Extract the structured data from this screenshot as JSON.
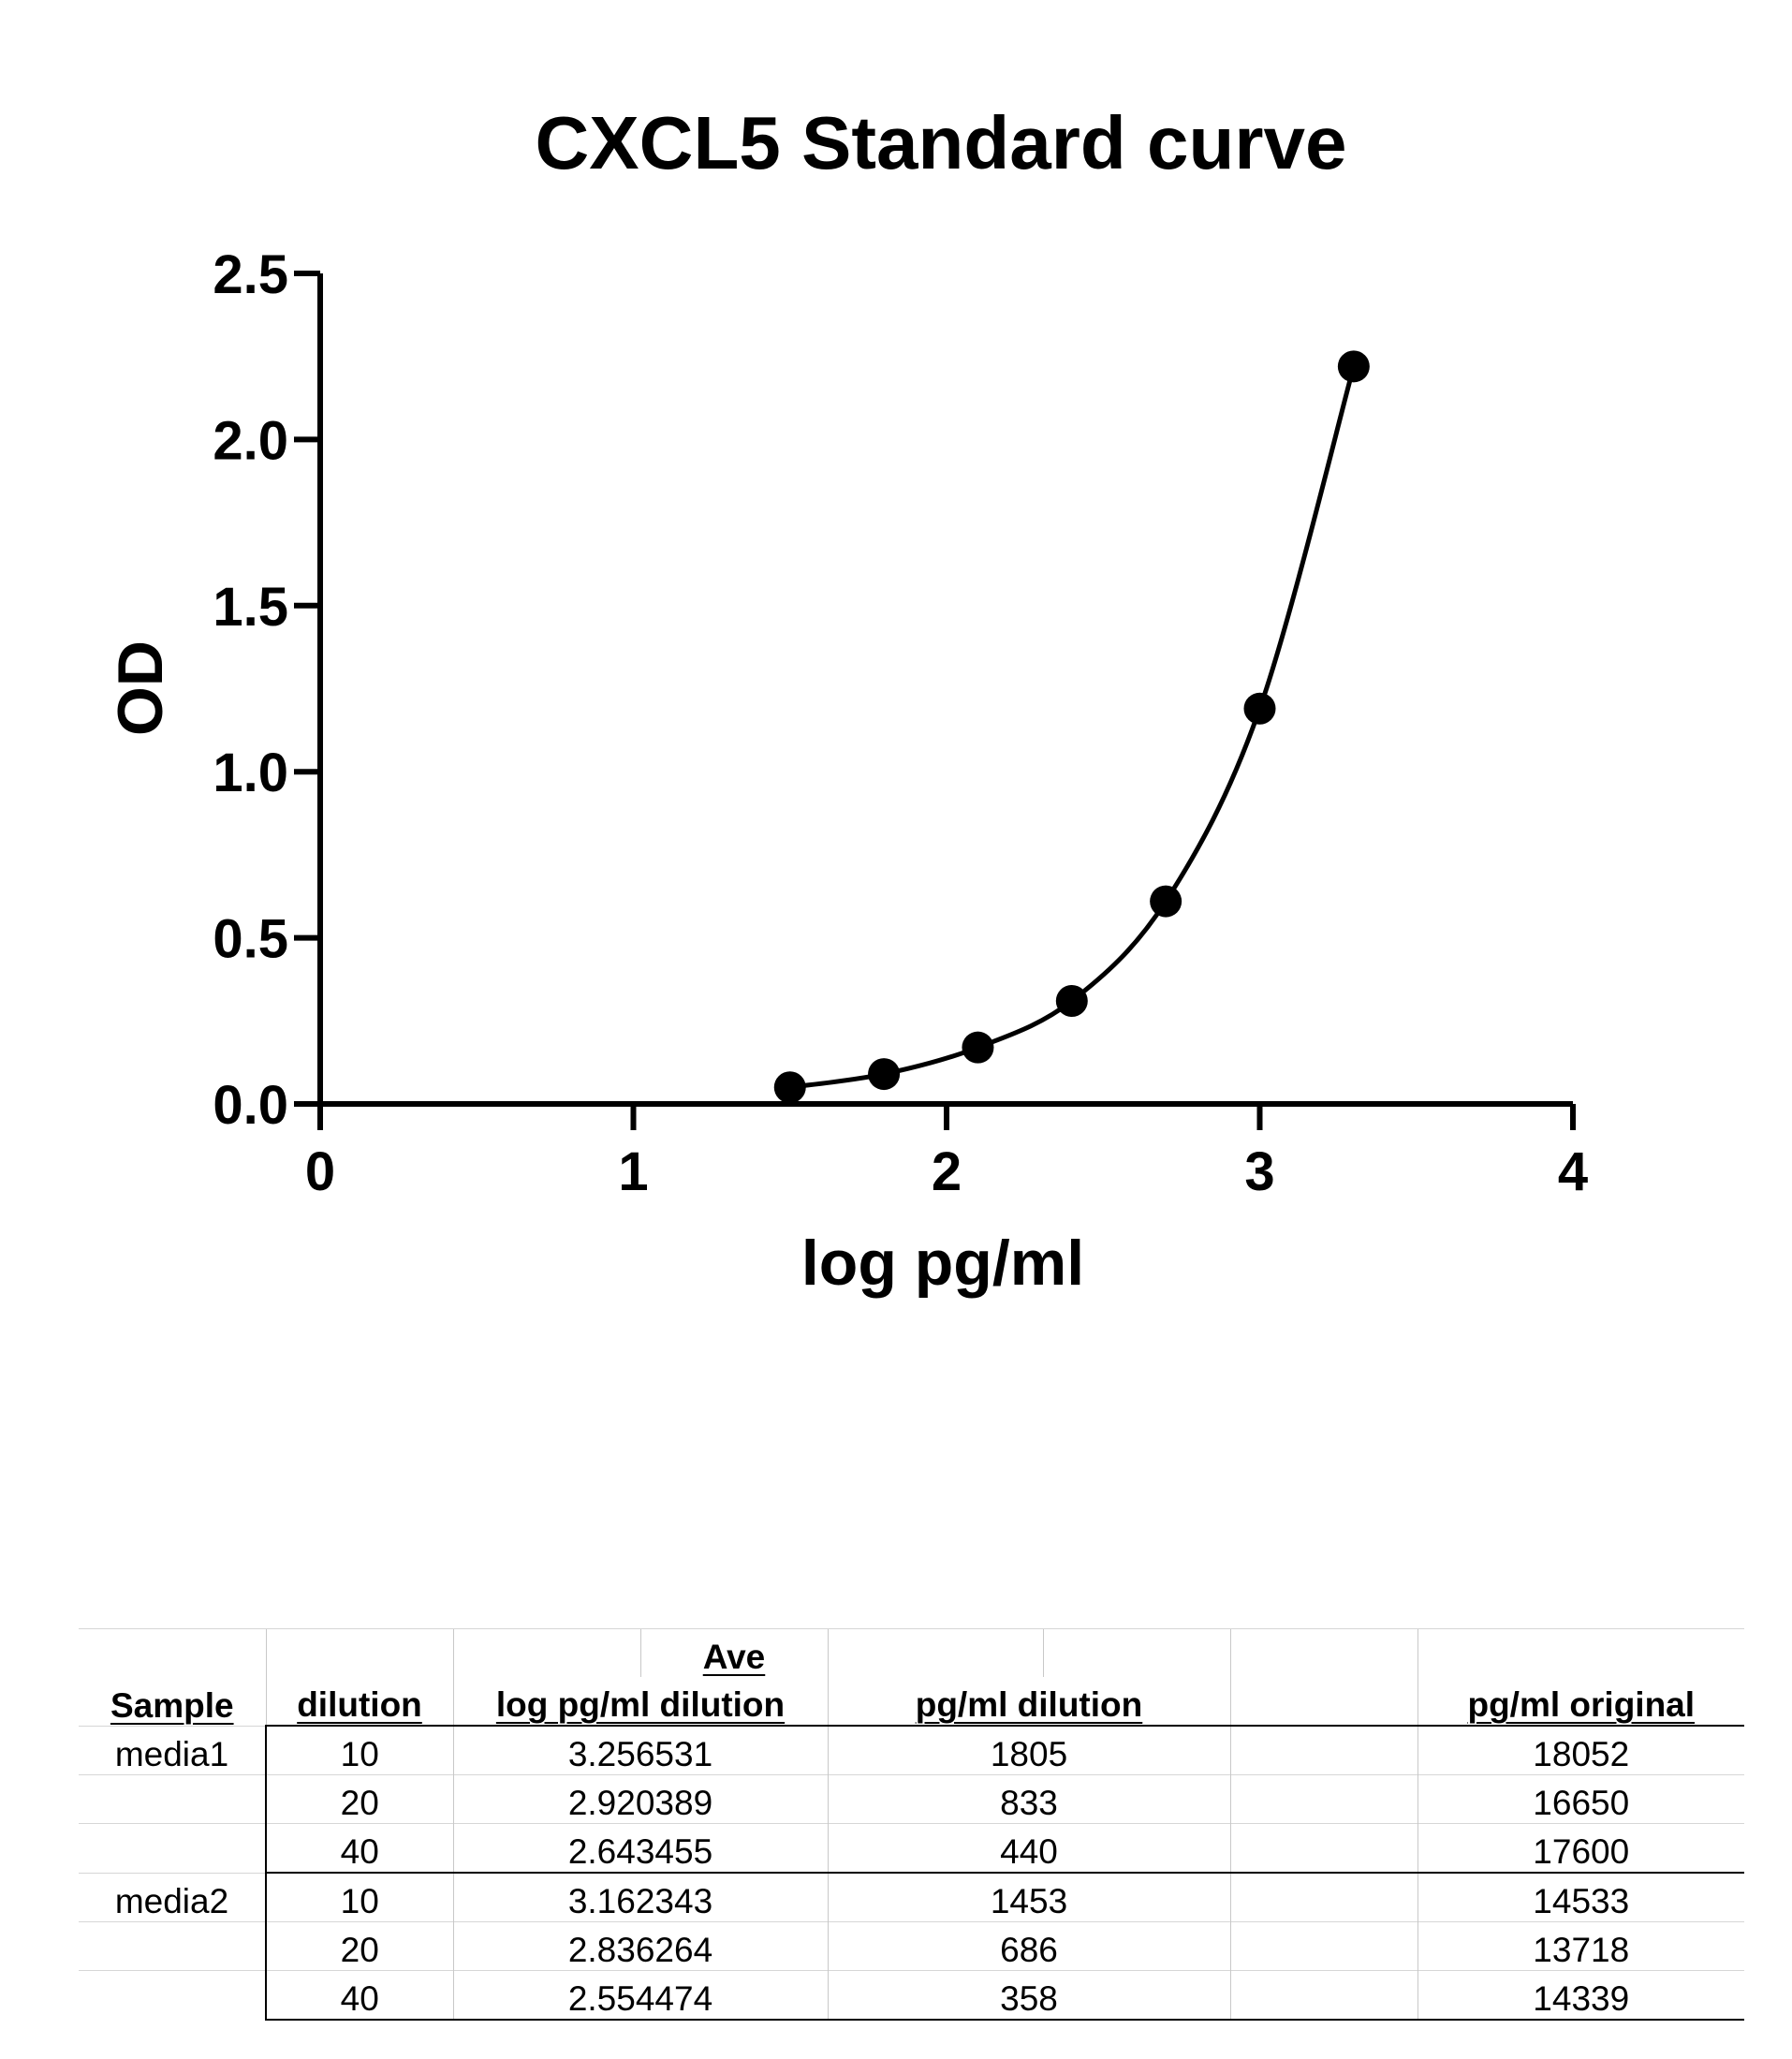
{
  "chart_data": {
    "type": "scatter",
    "title": "CXCL5 Standard curve",
    "xlabel": "log pg/ml",
    "ylabel": "OD",
    "xlim": [
      0,
      4
    ],
    "ylim": [
      0,
      2.5
    ],
    "x_ticks": [
      "0",
      "1",
      "2",
      "3",
      "4"
    ],
    "y_ticks": [
      "0.0",
      "0.5",
      "1.0",
      "1.5",
      "2.0",
      "2.5"
    ],
    "series": [
      {
        "points": [
          {
            "x": 1.5,
            "y": 0.05
          },
          {
            "x": 1.8,
            "y": 0.09
          },
          {
            "x": 2.1,
            "y": 0.17
          },
          {
            "x": 2.4,
            "y": 0.31
          },
          {
            "x": 2.7,
            "y": 0.61
          },
          {
            "x": 3.0,
            "y": 1.19
          },
          {
            "x": 3.3,
            "y": 2.22
          }
        ],
        "fit_curve": true,
        "marker_color": "#000000"
      }
    ],
    "grid": false,
    "legend": "none"
  },
  "table": {
    "header_top": {
      "ave": "Ave"
    },
    "headers": {
      "sample": "Sample",
      "dilution": "dilution",
      "log_dilution": "log pg/ml dilution",
      "pg_dilution": "pg/ml dilution",
      "pg_original": "pg/ml original"
    },
    "rows": [
      {
        "sample": "media1",
        "dilution": "10",
        "log": "3.256531",
        "pg_dilution": "1805",
        "pg_original": "18052"
      },
      {
        "sample": "",
        "dilution": "20",
        "log": "2.920389",
        "pg_dilution": "833",
        "pg_original": "16650"
      },
      {
        "sample": "",
        "dilution": "40",
        "log": "2.643455",
        "pg_dilution": "440",
        "pg_original": "17600"
      },
      {
        "sample": "media2",
        "dilution": "10",
        "log": "3.162343",
        "pg_dilution": "1453",
        "pg_original": "14533"
      },
      {
        "sample": "",
        "dilution": "20",
        "log": "2.836264",
        "pg_dilution": "686",
        "pg_original": "13718"
      },
      {
        "sample": "",
        "dilution": "40",
        "log": "2.554474",
        "pg_dilution": "358",
        "pg_original": "14339"
      }
    ]
  }
}
